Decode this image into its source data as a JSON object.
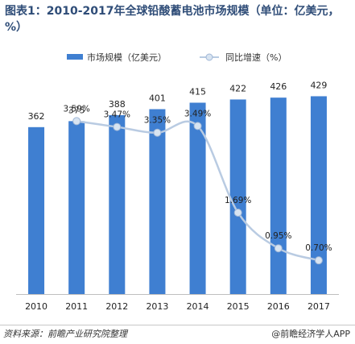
{
  "title": "图表1：2010-2017年全球铅酸蓄电池市场规模（单位：亿美元，%）",
  "footer": {
    "source": "资料来源：前瞻产业研究院整理",
    "brand": "@前瞻经济学人APP"
  },
  "chart_data": {
    "type": "bar",
    "categories": [
      "2010",
      "2011",
      "2012",
      "2013",
      "2014",
      "2015",
      "2016",
      "2017"
    ],
    "series": [
      {
        "name": "市场规模（亿美元）",
        "type": "bar",
        "axis": "left",
        "color": "#3f7fd1",
        "values": [
          362,
          375,
          388,
          401,
          415,
          422,
          426,
          429
        ],
        "labels": [
          "362",
          "375",
          "388",
          "401",
          "415",
          "422",
          "426",
          "429"
        ]
      },
      {
        "name": "同比增速（%）",
        "type": "line",
        "axis": "right",
        "color": "#b9cbe2",
        "marker_color": "#d8e4f1",
        "values": [
          null,
          3.59,
          3.47,
          3.35,
          3.49,
          1.69,
          0.95,
          0.7
        ],
        "labels": [
          "",
          "3.59%",
          "3.47%",
          "3.35%",
          "3.49%",
          "1.69%",
          "0.95%",
          "0.70%"
        ]
      }
    ],
    "left_axis_range": [
      0,
      470
    ],
    "right_axis_range": [
      0,
      4.5
    ],
    "grid": false,
    "axes_visible": false,
    "legend": "top-center"
  }
}
